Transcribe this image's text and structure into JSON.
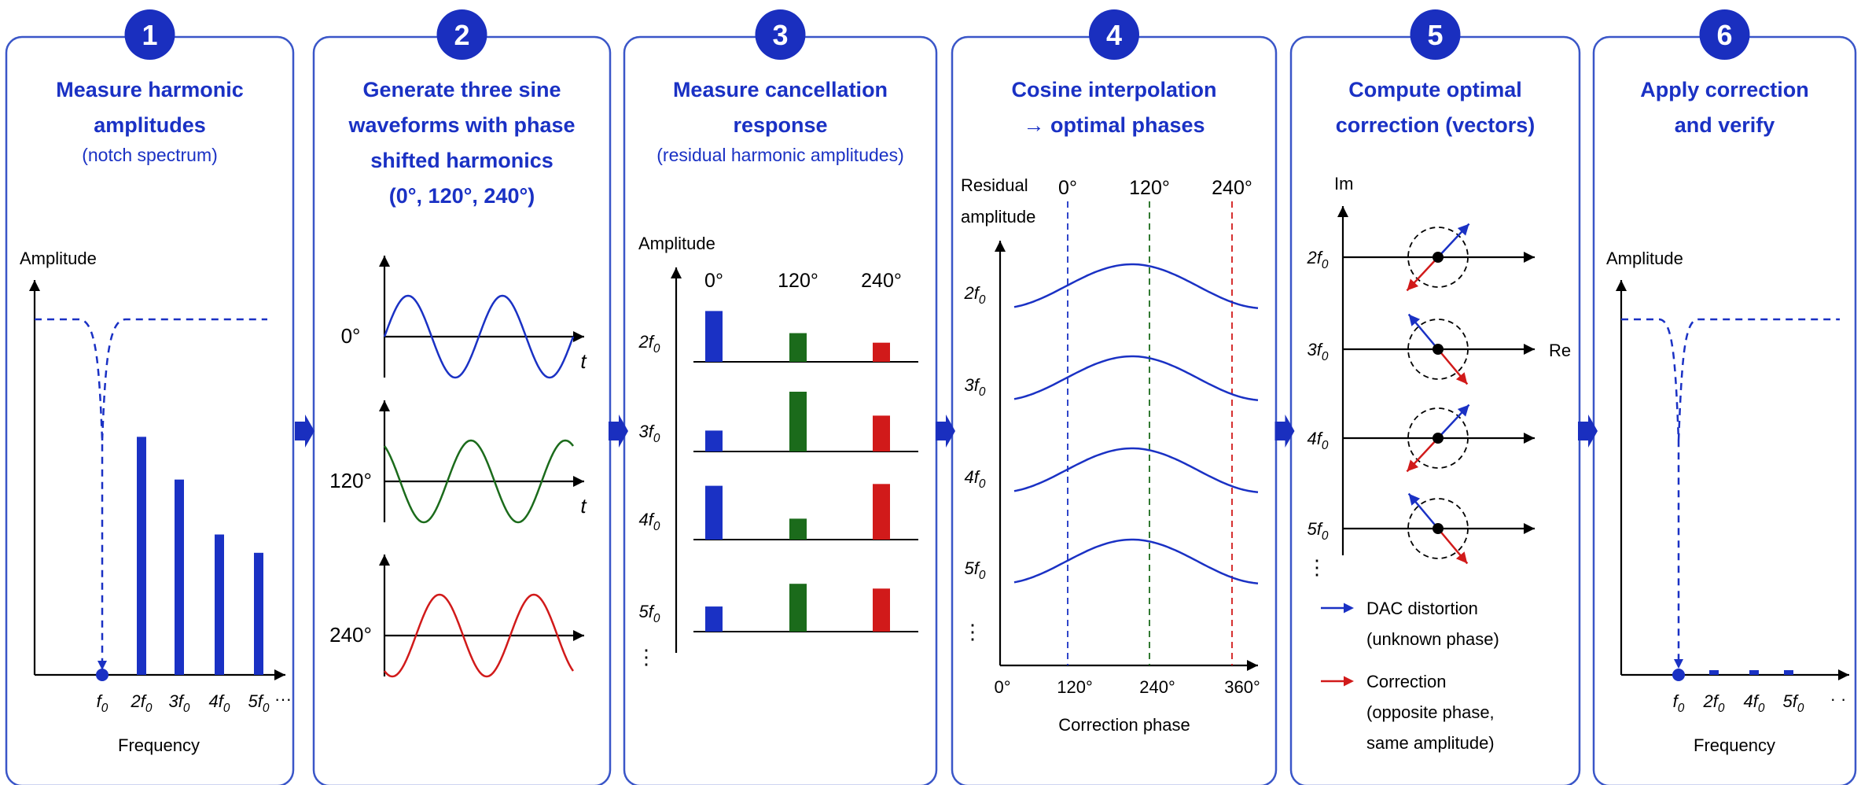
{
  "colors": {
    "blue": "#1a31c4",
    "green": "#1b6b1b",
    "red": "#d11a1a",
    "badge": "#1a2fbf",
    "panel_border": "#3a56c8"
  },
  "steps": [
    {
      "number": "1",
      "title": [
        "Measure harmonic",
        "amplitudes"
      ],
      "subtitle": [
        "(notch spectrum)"
      ]
    },
    {
      "number": "2",
      "title": [
        "Generate three sine",
        "waveforms with phase",
        "shifted harmonics",
        "(0°, 120°, 240°)"
      ],
      "subtitle": []
    },
    {
      "number": "3",
      "title": [
        "Measure cancellation",
        "response"
      ],
      "subtitle": [
        "(residual harmonic amplitudes)"
      ]
    },
    {
      "number": "4",
      "title": [
        "Cosine interpolation",
        "→ optimal phases"
      ],
      "subtitle": []
    },
    {
      "number": "5",
      "title": [
        "Compute optimal",
        "correction (vectors)"
      ],
      "subtitle": []
    },
    {
      "number": "6",
      "title": [
        "Apply correction",
        "and verify"
      ],
      "subtitle": []
    }
  ],
  "panel1": {
    "y_label": "Amplitude",
    "x_label": "Frequency",
    "ticks": [
      "f0",
      "2f0",
      "3f0",
      "4f0",
      "5f0"
    ],
    "ellipsis": "···",
    "harmonic_levels": [
      0.0,
      0.78,
      0.64,
      0.46,
      0.4
    ]
  },
  "panel2": {
    "phases": [
      "0°",
      "120°",
      "240°"
    ],
    "t_label": "t"
  },
  "panel3": {
    "y_label": "Amplitude",
    "columns": [
      "0°",
      "120°",
      "240°"
    ],
    "rows": [
      "2f0",
      "3f0",
      "4f0",
      "5f0"
    ],
    "ellipsis": "⋮",
    "values": [
      [
        0.85,
        0.48,
        0.32
      ],
      [
        0.35,
        1.0,
        0.6
      ],
      [
        0.9,
        0.35,
        0.93
      ],
      [
        0.42,
        0.8,
        0.72
      ]
    ]
  },
  "panel4": {
    "y_label": [
      "Residual",
      "amplitude"
    ],
    "phase_markers": [
      "0°",
      "120°",
      "240°"
    ],
    "rows": [
      "2f0",
      "3f0",
      "4f0",
      "5f0"
    ],
    "ellipsis": "⋮",
    "x_ticks": [
      "0°",
      "120°",
      "240°",
      "360°"
    ],
    "x_label": "Correction phase"
  },
  "panel5": {
    "axis_im": "Im",
    "axis_re": "Re",
    "rows": [
      "2f0",
      "3f0",
      "4f0",
      "5f0"
    ],
    "ellipsis": "⋮",
    "legend": [
      {
        "lines": [
          "DAC distortion",
          "(unknown phase)"
        ],
        "color": "blue"
      },
      {
        "lines": [
          "Correction",
          "(opposite phase,",
          "same amplitude)"
        ],
        "color": "red"
      }
    ]
  },
  "panel6": {
    "y_label": "Amplitude",
    "x_label": "Frequency",
    "ticks": [
      "f0",
      "2f0",
      "4f0",
      "5f0"
    ],
    "ellipsis": "· ·"
  }
}
